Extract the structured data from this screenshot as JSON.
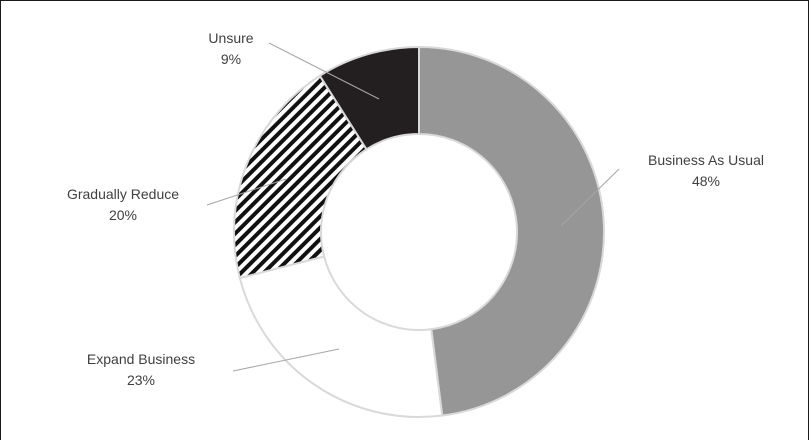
{
  "chart_data": {
    "type": "pie",
    "donut": true,
    "slices": [
      {
        "label": "Business As Usual",
        "pct_label": "48%",
        "value": 48,
        "color": "#969696",
        "pattern": "solid"
      },
      {
        "label": "Expand Business",
        "pct_label": "23%",
        "value": 23,
        "color": "#ffffff",
        "pattern": "solid"
      },
      {
        "label": "Gradually Reduce",
        "pct_label": "20%",
        "value": 20,
        "color": "#000000",
        "pattern": "diagonal-stripes"
      },
      {
        "label": "Unsure",
        "pct_label": "9%",
        "value": 9,
        "color": "#231f20",
        "pattern": "solid"
      }
    ],
    "start_angle_deg": 0,
    "direction": "clockwise",
    "legend": "none",
    "labels": "outside-with-leader-lines"
  }
}
